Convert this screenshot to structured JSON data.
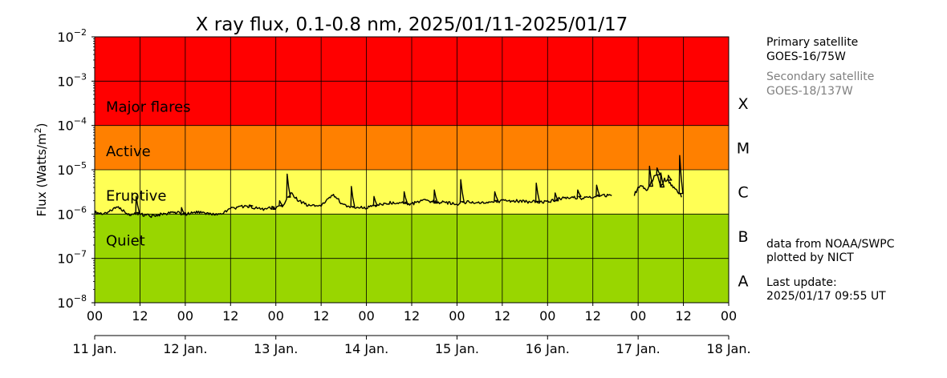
{
  "chart_data": {
    "type": "line",
    "title": "X ray flux, 0.1-0.8 nm, 2025/01/11-2025/01/17",
    "ylabel": "Flux (Watts/m²)",
    "yscale": "log",
    "ylim": [
      1e-08,
      0.01
    ],
    "xlim": [
      "2025-01-11 00:00",
      "2025-01-18 00:00"
    ],
    "y_ticks": [
      {
        "base": "10",
        "exp": "−8"
      },
      {
        "base": "10",
        "exp": "−7"
      },
      {
        "base": "10",
        "exp": "−6"
      },
      {
        "base": "10",
        "exp": "−5"
      },
      {
        "base": "10",
        "exp": "−4"
      },
      {
        "base": "10",
        "exp": "−3"
      },
      {
        "base": "10",
        "exp": "−2"
      }
    ],
    "x_hour_ticks": [
      "00",
      "12",
      "00",
      "12",
      "00",
      "12",
      "00",
      "12",
      "00",
      "12",
      "00",
      "12",
      "00",
      "12",
      "00"
    ],
    "x_day_labels": [
      "11 Jan.",
      "12 Jan.",
      "13 Jan.",
      "14 Jan.",
      "15 Jan.",
      "16 Jan.",
      "17 Jan.",
      "18 Jan."
    ],
    "grid": true,
    "bands": [
      {
        "label": "Major flares",
        "class": "X",
        "from": 0.0001,
        "to": 0.01,
        "color": "#ff0000"
      },
      {
        "label": "Active",
        "class": "M",
        "from": 1e-05,
        "to": 0.0001,
        "color": "#ff8000"
      },
      {
        "label": "Eruptive",
        "class": "C",
        "from": 1e-06,
        "to": 1e-05,
        "color": "#ffff55"
      },
      {
        "label": "Quiet",
        "class": "",
        "from": 1e-08,
        "to": 1e-06,
        "color": "#99d600"
      }
    ],
    "flare_classes": [
      "X",
      "M",
      "C",
      "B",
      "A"
    ],
    "series": [
      {
        "color": "#000000",
        "x": [
          "2025-01-11 00:00",
          "2025-01-11 03:00",
          "2025-01-11 06:00",
          "2025-01-11 09:00",
          "2025-01-11 12:00",
          "2025-01-11 15:00",
          "2025-01-11 18:00",
          "2025-01-11 21:00",
          "2025-01-12 00:00",
          "2025-01-12 03:00",
          "2025-01-12 06:00",
          "2025-01-12 09:00",
          "2025-01-12 12:00",
          "2025-01-12 15:00",
          "2025-01-12 18:00",
          "2025-01-12 21:00",
          "2025-01-13 00:00",
          "2025-01-13 02:00",
          "2025-01-13 04:00",
          "2025-01-13 06:00",
          "2025-01-13 09:00",
          "2025-01-13 12:00",
          "2025-01-13 15:00",
          "2025-01-13 18:00",
          "2025-01-13 21:00",
          "2025-01-14 00:00",
          "2025-01-14 03:00",
          "2025-01-14 06:00",
          "2025-01-14 09:00",
          "2025-01-14 12:00",
          "2025-01-14 15:00",
          "2025-01-14 18:00",
          "2025-01-14 21:00",
          "2025-01-15 00:00",
          "2025-01-15 03:00",
          "2025-01-15 06:00",
          "2025-01-15 09:00",
          "2025-01-15 12:00",
          "2025-01-15 15:00",
          "2025-01-15 18:00",
          "2025-01-15 21:00",
          "2025-01-16 00:00",
          "2025-01-16 03:00",
          "2025-01-16 06:00",
          "2025-01-16 09:00",
          "2025-01-16 12:00",
          "2025-01-16 15:00",
          "2025-01-16 17:00"
        ],
        "y": [
          1.1e-06,
          1e-06,
          1.5e-06,
          1e-06,
          1e-06,
          9e-07,
          1e-06,
          1.1e-06,
          1e-06,
          1.1e-06,
          1e-06,
          9.5e-07,
          1.3e-06,
          1.5e-06,
          1.4e-06,
          1.3e-06,
          1.4e-06,
          1.5e-06,
          3e-06,
          2e-06,
          1.5e-06,
          1.6e-06,
          2.8e-06,
          1.6e-06,
          1.4e-06,
          1.4e-06,
          1.6e-06,
          1.8e-06,
          1.8e-06,
          1.7e-06,
          2e-06,
          1.9e-06,
          1.8e-06,
          1.7e-06,
          1.9e-06,
          1.8e-06,
          1.8e-06,
          2e-06,
          2e-06,
          1.9e-06,
          1.9e-06,
          1.9e-06,
          2.2e-06,
          2.4e-06,
          2.3e-06,
          2.5e-06,
          2.6e-06,
          2.6e-06
        ],
        "peaks": [
          {
            "x": "2025-01-11 11:00",
            "y": 2.5e-06
          },
          {
            "x": "2025-01-11 23:00",
            "y": 1.4e-06
          },
          {
            "x": "2025-01-12 17:00",
            "y": 1.6e-06
          },
          {
            "x": "2025-01-12 23:00",
            "y": 1.5e-06
          },
          {
            "x": "2025-01-13 01:00",
            "y": 2e-06
          },
          {
            "x": "2025-01-13 03:00",
            "y": 8e-06
          },
          {
            "x": "2025-01-13 20:00",
            "y": 4.2e-06
          },
          {
            "x": "2025-01-14 02:00",
            "y": 2.5e-06
          },
          {
            "x": "2025-01-14 10:00",
            "y": 3.2e-06
          },
          {
            "x": "2025-01-14 18:00",
            "y": 3.5e-06
          },
          {
            "x": "2025-01-15 01:00",
            "y": 6e-06
          },
          {
            "x": "2025-01-15 10:00",
            "y": 3.2e-06
          },
          {
            "x": "2025-01-15 21:00",
            "y": 5e-06
          },
          {
            "x": "2025-01-16 02:00",
            "y": 3e-06
          },
          {
            "x": "2025-01-16 08:00",
            "y": 3.5e-06
          },
          {
            "x": "2025-01-16 13:00",
            "y": 4.5e-06
          }
        ]
      },
      {
        "color": "#000000",
        "x": [
          "2025-01-16 23:00",
          "2025-01-17 00:00",
          "2025-01-17 01:00",
          "2025-01-17 02:00",
          "2025-01-17 03:00",
          "2025-01-17 04:00",
          "2025-01-17 05:00",
          "2025-01-17 06:00",
          "2025-01-17 07:00",
          "2025-01-17 08:00",
          "2025-01-17 09:00",
          "2025-01-17 10:00",
          "2025-01-17 11:00",
          "2025-01-17 11:30"
        ],
        "y": [
          2.8e-06,
          3.8e-06,
          4.5e-06,
          3.5e-06,
          4.2e-06,
          6.5e-06,
          8e-06,
          4.2e-06,
          6e-06,
          5.5e-06,
          4.2e-06,
          3.5e-06,
          2.8e-06,
          2.4e-06
        ],
        "peaks": [
          {
            "x": "2025-01-17 03:00",
            "y": 1.2e-05
          },
          {
            "x": "2025-01-17 05:00",
            "y": 1.1e-05
          },
          {
            "x": "2025-01-17 06:00",
            "y": 8.5e-06
          },
          {
            "x": "2025-01-17 08:00",
            "y": 7.5e-06
          },
          {
            "x": "2025-01-17 11:00",
            "y": 2.1e-05
          }
        ]
      }
    ]
  },
  "info": {
    "primary_title": "Primary satellite",
    "primary_name": "GOES-16/75W",
    "secondary_title": "Secondary satellite",
    "secondary_name": "GOES-18/137W",
    "source_line1": "data from NOAA/SWPC",
    "source_line2": "plotted by NICT",
    "update_title": "Last update:",
    "update_time": "2025/01/17 09:55 UT"
  }
}
